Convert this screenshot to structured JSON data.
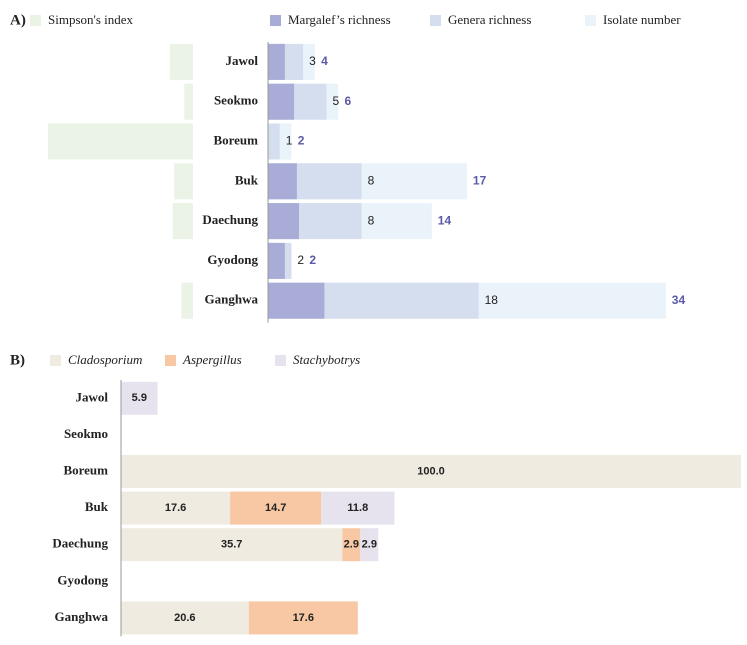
{
  "chart_data": [
    {
      "type": "overlap_bar",
      "panel_label": "A)",
      "categories": [
        "Jawol",
        "Seokmo",
        "Boreum",
        "Buk",
        "Daechung",
        "Gyodong",
        "Ganghwa"
      ],
      "series": [
        {
          "name": "Simpson's index",
          "color": "#eaf3e6",
          "values": [
            0.16,
            0.06,
            1.0,
            0.13,
            0.14,
            0,
            0.08
          ]
        },
        {
          "name": "Margalef’s richness",
          "color": "#a9acd6",
          "values": [
            1.44,
            2.23,
            0,
            2.47,
            2.65,
            1.44,
            4.82
          ]
        },
        {
          "name": "Genera richness",
          "color": "#d5deee",
          "values": [
            3,
            5,
            1,
            8,
            8,
            2,
            18
          ]
        },
        {
          "name": "Isolate number",
          "color": "#eaf2fa",
          "values": [
            4,
            6,
            2,
            17,
            14,
            2,
            34
          ]
        }
      ]
    },
    {
      "type": "stacked_bar",
      "panel_label": "B)",
      "categories": [
        "Jawol",
        "Seokmo",
        "Boreum",
        "Buk",
        "Daechung",
        "Gyodong",
        "Ganghwa"
      ],
      "series": [
        {
          "name": "Cladosporium",
          "color": "#efebe1",
          "values": [
            null,
            null,
            100,
            17.6,
            35.7,
            null,
            20.6
          ],
          "value_labels": [
            null,
            null,
            "100.0",
            "17.6",
            "35.7",
            null,
            "20.6"
          ]
        },
        {
          "name": "Aspergillus",
          "color": "#f8c8a4",
          "values": [
            null,
            null,
            null,
            14.7,
            2.9,
            null,
            17.6
          ],
          "value_labels": [
            null,
            null,
            null,
            "14.7",
            "2.9",
            null,
            "17.6"
          ]
        },
        {
          "name": "Stachybotrys",
          "color": "#e6e2ee",
          "values": [
            5.9,
            null,
            null,
            11.8,
            2.9,
            null,
            null
          ],
          "value_labels": [
            "5.9",
            null,
            null,
            "11.8",
            "2.9",
            null,
            null
          ]
        }
      ]
    }
  ]
}
